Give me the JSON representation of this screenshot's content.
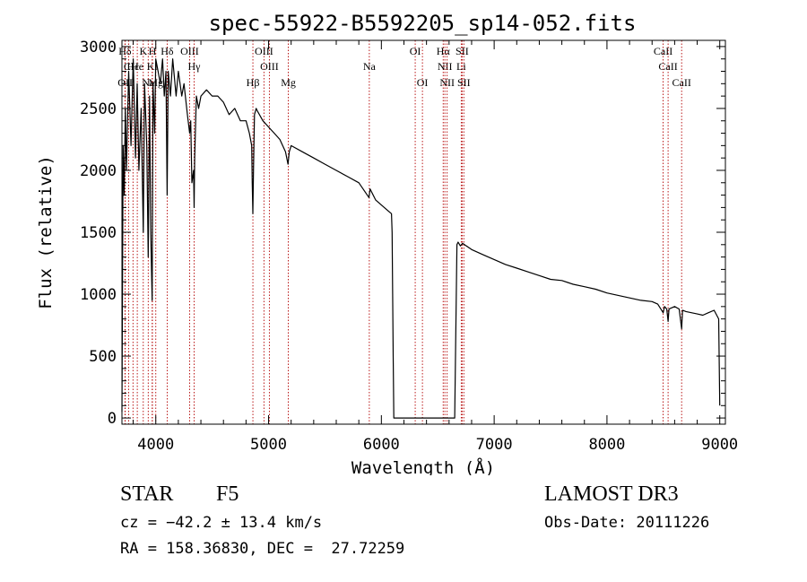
{
  "chart_data": {
    "type": "line",
    "title": "spec-55922-B5592205_sp14-052.fits",
    "xlabel": "Wavelength (Å)",
    "ylabel": "Flux (relative)",
    "xlim": [
      3700,
      9050
    ],
    "ylim": [
      -50,
      3050
    ],
    "xticks": [
      4000,
      5000,
      6000,
      7000,
      8000,
      9000
    ],
    "xtick_labels": [
      "4000",
      "5000",
      "6000",
      "7000",
      "8000",
      "9000"
    ],
    "yticks": [
      0,
      500,
      1000,
      1500,
      2000,
      2500,
      3000
    ],
    "ytick_labels": [
      "0",
      "500",
      "1000",
      "1500",
      "2000",
      "2500",
      "3000"
    ],
    "series": [
      {
        "name": "flux",
        "x": [
          3700,
          3710,
          3720,
          3730,
          3740,
          3760,
          3780,
          3800,
          3820,
          3835,
          3850,
          3870,
          3889,
          3900,
          3920,
          3933,
          3945,
          3955,
          3968,
          3975,
          3990,
          4000,
          4020,
          4040,
          4060,
          4075,
          4090,
          4101,
          4110,
          4130,
          4150,
          4180,
          4200,
          4230,
          4250,
          4280,
          4300,
          4310,
          4320,
          4335,
          4340,
          4345,
          4360,
          4380,
          4400,
          4450,
          4500,
          4550,
          4600,
          4650,
          4700,
          4750,
          4800,
          4830,
          4850,
          4855,
          4861,
          4866,
          4875,
          4890,
          4900,
          4950,
          5000,
          5050,
          5100,
          5150,
          5172,
          5183,
          5200,
          5300,
          5400,
          5500,
          5600,
          5700,
          5800,
          5890,
          5900,
          5950,
          6000,
          6050,
          6090,
          6095,
          6100,
          6105,
          6110,
          6650,
          6670,
          6680,
          6700,
          6720,
          6800,
          6900,
          7000,
          7100,
          7200,
          7300,
          7400,
          7500,
          7600,
          7700,
          7800,
          7900,
          8000,
          8100,
          8200,
          8300,
          8400,
          8450,
          8498,
          8510,
          8530,
          8542,
          8550,
          8600,
          8640,
          8662,
          8670,
          8700,
          8800,
          8850,
          8900,
          8950,
          8990,
          9000
        ],
        "y": [
          50,
          2200,
          1800,
          2500,
          2000,
          2800,
          2200,
          2900,
          2100,
          2700,
          2000,
          2500,
          1500,
          2700,
          2200,
          1300,
          2600,
          1500,
          950,
          2700,
          2300,
          2900,
          2800,
          2700,
          2900,
          2600,
          2800,
          1800,
          2800,
          2600,
          2900,
          2600,
          2800,
          2600,
          2700,
          2450,
          2300,
          2400,
          1900,
          2000,
          1700,
          2100,
          2600,
          2500,
          2600,
          2650,
          2600,
          2600,
          2550,
          2450,
          2500,
          2400,
          2400,
          2300,
          2200,
          1900,
          1650,
          2000,
          2450,
          2500,
          2480,
          2400,
          2350,
          2300,
          2250,
          2150,
          2050,
          2150,
          2200,
          2150,
          2100,
          2050,
          2000,
          1950,
          1900,
          1780,
          1850,
          1760,
          1720,
          1680,
          1650,
          1500,
          1000,
          500,
          0,
          0,
          1400,
          1420,
          1390,
          1410,
          1360,
          1320,
          1280,
          1240,
          1210,
          1180,
          1150,
          1120,
          1110,
          1080,
          1060,
          1040,
          1010,
          990,
          970,
          950,
          940,
          920,
          850,
          900,
          880,
          780,
          880,
          900,
          880,
          720,
          870,
          860,
          840,
          830,
          850,
          870,
          800,
          100
        ]
      }
    ],
    "lines": [
      {
        "label": "Hδ",
        "row": 1,
        "x": 3727
      },
      {
        "label": "OII",
        "row": 3,
        "x": 3729
      },
      {
        "label": "Cl",
        "row": 2,
        "x": 3760
      },
      {
        "label": "Hε",
        "row": 2,
        "x": 3798
      },
      {
        "label": "He",
        "row": 2,
        "x": 3836
      },
      {
        "label": "K",
        "row": 1,
        "x": 3889
      },
      {
        "label": "Na",
        "row": 3,
        "x": 3933
      },
      {
        "label": "Ki",
        "row": 2,
        "x": 3968
      },
      {
        "label": "H",
        "row": 1,
        "x": 3970
      },
      {
        "label": "Mg",
        "row": 3,
        "x": 4000
      },
      {
        "label": "Hδ",
        "row": 1,
        "x": 4101
      },
      {
        "label": "OIII",
        "row": 1,
        "x": 4300
      },
      {
        "label": "Hγ",
        "row": 2,
        "x": 4340
      },
      {
        "label": "Hβ",
        "row": 3,
        "x": 4861
      },
      {
        "label": "OIII",
        "row": 1,
        "x": 4959
      },
      {
        "label": "OIII",
        "row": 2,
        "x": 5007
      },
      {
        "label": "Mg",
        "row": 3,
        "x": 5175
      },
      {
        "label": "Na",
        "row": 2,
        "x": 5893
      },
      {
        "label": "OI",
        "row": 1,
        "x": 6300
      },
      {
        "label": "OI",
        "row": 3,
        "x": 6364
      },
      {
        "label": "Hα",
        "row": 1,
        "x": 6548
      },
      {
        "label": "NII",
        "row": 2,
        "x": 6563
      },
      {
        "label": "NII",
        "row": 3,
        "x": 6583
      },
      {
        "label": "SII",
        "row": 1,
        "x": 6716
      },
      {
        "label": "Li",
        "row": 2,
        "x": 6708
      },
      {
        "label": "SII",
        "row": 3,
        "x": 6731
      },
      {
        "label": "CaII",
        "row": 1,
        "x": 8498
      },
      {
        "label": "CaII",
        "row": 2,
        "x": 8542
      },
      {
        "label": "CaII",
        "row": 3,
        "x": 8662
      }
    ]
  },
  "info": {
    "object_class": "STAR",
    "subclass": "F5",
    "survey": "LAMOST DR3",
    "cz": "cz = −42.2 ± 13.4 km/s",
    "obs_date": "Obs-Date: 20111226",
    "coords": "RA = 158.36830, DEC =  27.72259"
  }
}
